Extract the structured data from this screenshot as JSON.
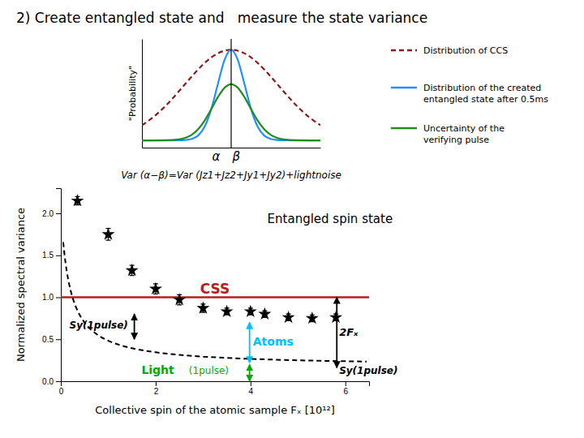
{
  "chart_data": [
    {
      "type": "scatter",
      "title": "2) Create entangled state and   measure the state variance",
      "x_label": "Collective spin of the atomic sample Fₓ [10¹²]",
      "y_label": "Normalized spectral variance",
      "xlim": [
        0,
        6.5
      ],
      "ylim": [
        0.0,
        2.3
      ],
      "xticks": [
        0,
        2,
        4,
        6
      ],
      "yticks": [
        {
          "value": 0.0,
          "label": "0.0"
        },
        {
          "value": 0.5,
          "label": "0.5"
        },
        {
          "value": 1.0,
          "label": "1.0"
        },
        {
          "value": 1.5,
          "label": "1.5"
        },
        {
          "value": 2.0,
          "label": "2.0"
        }
      ],
      "grid": false,
      "series": [
        {
          "type": "scatter",
          "marker": "star",
          "color": "#000000",
          "x": [
            0.35,
            1.0,
            1.5,
            2.0,
            2.5,
            3.0,
            3.5,
            4.0,
            4.3,
            4.8,
            5.3,
            5.8
          ],
          "values": [
            2.15,
            1.75,
            1.32,
            1.1,
            0.97,
            0.87,
            0.83,
            0.83,
            0.8,
            0.76,
            0.75,
            0.76
          ],
          "errors": [
            0.05,
            0.07,
            0.06,
            0.06,
            0.06,
            0.05,
            0.04,
            0.04,
            0.04,
            0.04,
            0.04,
            0.04
          ]
        },
        {
          "type": "line",
          "line_style": "dashed",
          "color": "#000000",
          "x": [
            0.05,
            0.1,
            0.15,
            0.2,
            0.3,
            0.4,
            0.5,
            0.75,
            1.0,
            1.25,
            1.5,
            2.0,
            2.5,
            3.0,
            3.5,
            4.0,
            4.5,
            5.0,
            5.5,
            6.0,
            6.45
          ],
          "values": [
            1.6573,
            1.4064,
            1.2284,
            1.0955,
            0.9103,
            0.7875,
            0.7,
            0.5624,
            0.4823,
            0.43,
            0.3931,
            0.3446,
            0.314,
            0.293,
            0.2777,
            0.2661,
            0.2569,
            0.2495,
            0.2434,
            0.2383,
            0.2343
          ]
        }
      ],
      "reference_lines": [
        {
          "label": "CSS",
          "y": 1.0,
          "color": "#B22222"
        }
      ],
      "arrows": [
        {
          "x": 1.55,
          "y": [
            0.5,
            0.8
          ],
          "color": "#000000"
        },
        {
          "x": 3.98,
          "y": [
            0.22,
            0.7
          ],
          "color": "#00BFFF"
        },
        {
          "x": 3.98,
          "y": [
            0.0,
            0.2
          ],
          "color": "#00AA00"
        },
        {
          "x": 5.82,
          "y": [
            0.16,
            1.0
          ],
          "color": "#000000"
        }
      ],
      "annotations": [
        {
          "text": "Sy(1pulse)",
          "x": 0.18,
          "y": 0.63,
          "color": "#000000"
        },
        {
          "text": "Atoms",
          "x": 4.05,
          "y": 0.43,
          "color": "#00BFFF"
        },
        {
          "text": "Light",
          "x": 1.7,
          "y": 0.09,
          "color": "#00AA00"
        },
        {
          "text": "(1pulse)",
          "x": 2.7,
          "y": 0.09,
          "color": "#00AA00"
        },
        {
          "text": "2Fₓ",
          "x": 5.87,
          "y": 0.54,
          "color": "#000000"
        },
        {
          "text": "Sy(1pulse)",
          "x": 5.87,
          "y": 0.09,
          "color": "#000000"
        },
        {
          "text": "Entangled spin state",
          "x": 4.355,
          "y": 1.886,
          "color": "#000000"
        }
      ]
    },
    {
      "type": "line",
      "y_label": "\"Probability\"",
      "caption": "Var (α−β)=Var (Jz1+Jz2+Jy1+Jy2)+lightnoise",
      "xlim": [
        -3.4,
        3.4
      ],
      "ylim": [
        -0.08,
        1.12
      ],
      "tick_labels": false,
      "legend": "right",
      "x": [
        -3.4,
        -3.0,
        -2.5,
        -2.0,
        -1.75,
        -1.5,
        -1.25,
        -1.0,
        -0.75,
        -0.5,
        -0.25,
        0.0,
        0.25,
        0.5,
        0.75,
        1.0,
        1.25,
        1.5,
        1.75,
        2.0,
        2.5,
        3.0,
        3.4
      ],
      "series": [
        {
          "name": "Distribution of CCS",
          "line_style": "dashed",
          "color": "#8B1A1A",
          "values": [
            0.168,
            0.2494,
            0.3812,
            0.5394,
            0.6234,
            0.7066,
            0.7857,
            0.857,
            0.9169,
            0.9622,
            0.9904,
            1.0,
            0.9904,
            0.9622,
            0.9169,
            0.857,
            0.7857,
            0.7066,
            0.6234,
            0.5394,
            0.3812,
            0.2494,
            0.168
          ]
        },
        {
          "name": "Distribution of the created\nentangled state after 0.5ms",
          "line_style": "solid",
          "color": "#1E90FF",
          "values": [
            0.0,
            0.0,
            0.0,
            0.0006,
            0.0035,
            0.0156,
            0.0556,
            0.1574,
            0.3534,
            0.6298,
            0.8909,
            1.0,
            0.8909,
            0.6298,
            0.3534,
            0.1574,
            0.0556,
            0.0156,
            0.0035,
            0.0006,
            0.0,
            0.0,
            0.0
          ]
        },
        {
          "name": "Uncertainty of the\nverifying pulse",
          "line_style": "solid",
          "color": "#228B22",
          "values": [
            0.0,
            0.0001,
            0.0011,
            0.0105,
            0.0272,
            0.0624,
            0.1259,
            0.2235,
            0.3492,
            0.4804,
            0.5817,
            0.62,
            0.5817,
            0.4804,
            0.3492,
            0.2235,
            0.1259,
            0.0624,
            0.0272,
            0.0105,
            0.0011,
            0.0001,
            0.0
          ]
        }
      ],
      "reference_lines": [
        {
          "x": 0.0,
          "color": "#000000"
        }
      ],
      "annotations": [
        {
          "text": "α",
          "x": -0.42,
          "y": -0.12
        },
        {
          "text": "β",
          "x": 0.05,
          "y": -0.12
        }
      ]
    }
  ]
}
